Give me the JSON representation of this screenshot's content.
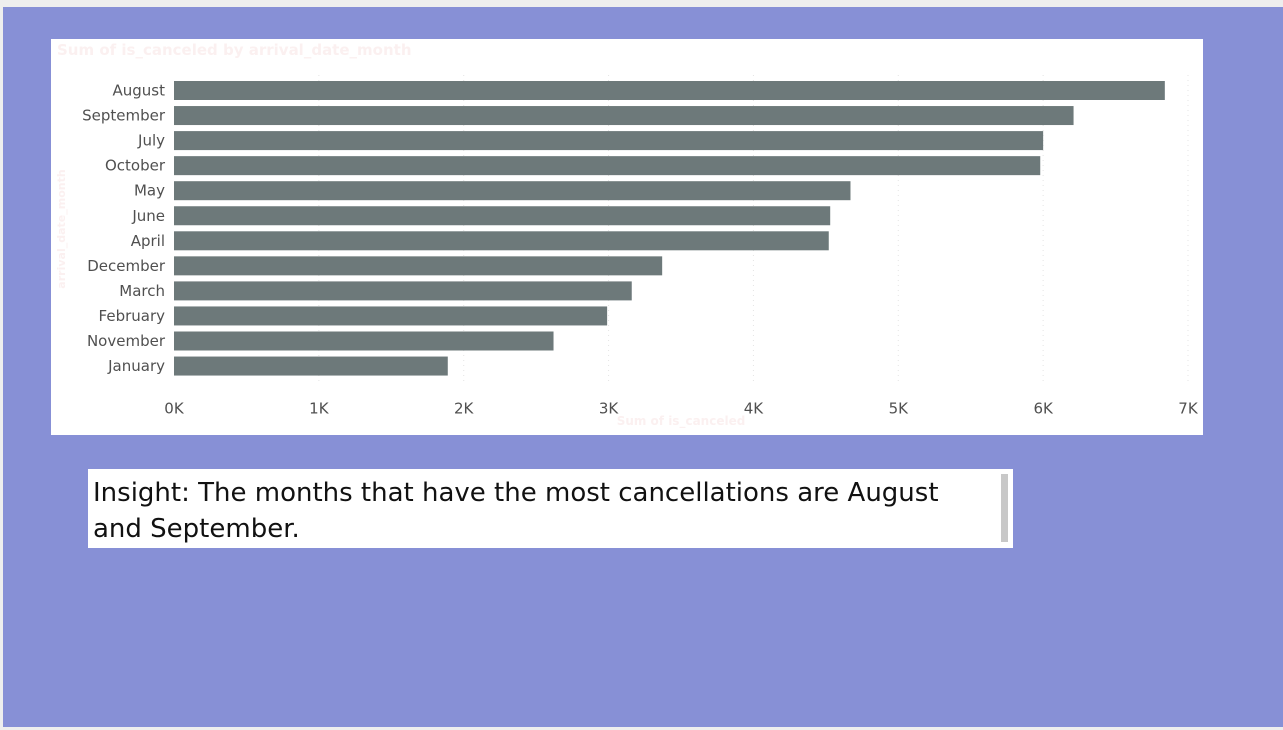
{
  "chart_data": {
    "type": "bar",
    "orientation": "horizontal",
    "title": "Sum of is_canceled by arrival_date_month",
    "xlabel": "Sum of is_canceled",
    "ylabel": "arrival_date_month",
    "categories": [
      "August",
      "September",
      "July",
      "October",
      "May",
      "June",
      "April",
      "December",
      "March",
      "February",
      "November",
      "January"
    ],
    "values": [
      6840,
      6210,
      6000,
      5980,
      4670,
      4530,
      4520,
      3370,
      3160,
      2990,
      2620,
      1890
    ],
    "xlim": [
      0,
      7000
    ],
    "x_ticks": [
      "0K",
      "1K",
      "2K",
      "3K",
      "4K",
      "5K",
      "6K",
      "7K"
    ],
    "bar_color": "#6d797a",
    "grid": true
  },
  "insight": {
    "text": "Insight:  The months that have the most cancellations are August and September."
  },
  "colors": {
    "background": "#8790d6",
    "card": "#ffffff",
    "label_text": "#505050"
  }
}
